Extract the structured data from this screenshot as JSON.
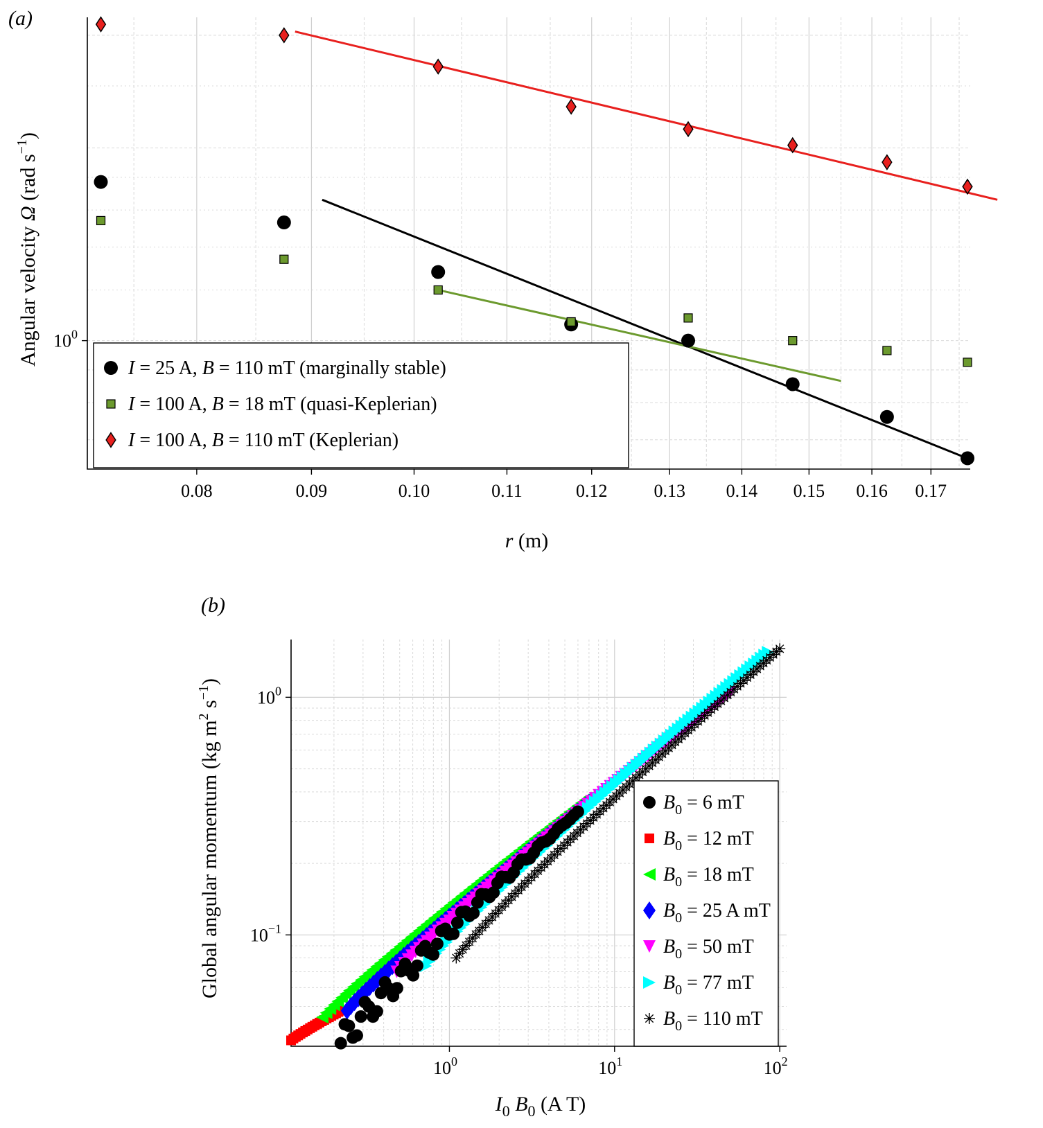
{
  "chart_data": [
    {
      "panel_label": "(a)",
      "type": "scatter",
      "xlabel_var": "r",
      "xlabel_unit": " (m)",
      "ylabel_pre": "Angular velocity ",
      "ylabel_var": "Ω",
      "ylabel_unit": " (rad s",
      "ylabel_sup": "−1",
      "ylabel_post": ")",
      "x_scale": "log",
      "y_scale": "log",
      "xlim": [
        0.0715,
        0.177
      ],
      "ylim": [
        0.63,
        3.2
      ],
      "x_ticks": [
        0.08,
        0.09,
        0.1,
        0.11,
        0.12,
        0.13,
        0.14,
        0.15,
        0.16,
        0.17
      ],
      "x_tick_labels": [
        "0.08",
        "0.09",
        "0.10",
        "0.11",
        "0.12",
        "0.13",
        "0.14",
        "0.15",
        "0.16",
        "0.17"
      ],
      "y_ticks": [
        1.0
      ],
      "y_tick_labels": [
        "10",
        "0"
      ],
      "grid": true,
      "legend_position": "bottom-left",
      "series": [
        {
          "name_parts": [
            "I",
            " = 25 A, ",
            "B",
            " = 110 mT (marginally stable)"
          ],
          "marker": "circle",
          "color": "#000000",
          "x": [
            0.0725,
            0.0875,
            0.1025,
            0.1175,
            0.1325,
            0.1475,
            0.1625,
            0.1775
          ],
          "y": [
            1.77,
            1.53,
            1.28,
            1.06,
            1.0,
            0.855,
            0.76,
            0.655
          ]
        },
        {
          "name_parts": [
            "I",
            " = 100 A, ",
            "B",
            " = 18 mT (quasi-Keplerian)"
          ],
          "marker": "square",
          "color": "#6c9a2e",
          "x": [
            0.0725,
            0.0875,
            0.1025,
            0.1175,
            0.1325,
            0.1475,
            0.1625,
            0.1775
          ],
          "y": [
            1.54,
            1.34,
            1.2,
            1.07,
            1.085,
            1.0,
            0.965,
            0.925
          ]
        },
        {
          "name_parts": [
            "I",
            " = 100 A, ",
            "B",
            " = 110 mT (Keplerian)"
          ],
          "marker": "diamond",
          "color": "#e8201e",
          "x": [
            0.0725,
            0.0875,
            0.1025,
            0.1175,
            0.1325,
            0.1475,
            0.1625,
            0.1775
          ],
          "y": [
            3.12,
            3.0,
            2.68,
            2.32,
            2.14,
            2.02,
            1.9,
            1.74
          ]
        }
      ],
      "fit_lines": [
        {
          "color": "#e8201e",
          "x": [
            0.0885,
            0.182
          ],
          "y": [
            3.04,
            1.66
          ]
        },
        {
          "color": "#000000",
          "x": [
            0.091,
            0.1755
          ],
          "y": [
            1.66,
            0.66
          ]
        },
        {
          "color": "#6c9a2e",
          "x": [
            0.1025,
            0.155
          ],
          "y": [
            1.2,
            0.865
          ]
        }
      ]
    },
    {
      "panel_label": "(b)",
      "type": "scatter",
      "xlabel_parts": [
        "I",
        "0",
        " B",
        "0",
        " (A T)"
      ],
      "ylabel_pre": "Global angular momentum (kg m",
      "ylabel_sup1": "2",
      "ylabel_mid": " s",
      "ylabel_sup2": "−1",
      "ylabel_post": ")",
      "x_scale": "log",
      "y_scale": "log",
      "xlim": [
        0.11,
        110
      ],
      "ylim": [
        0.034,
        1.75
      ],
      "x_ticks": [
        1,
        10,
        100
      ],
      "x_tick_labels": [
        [
          "10",
          "0"
        ],
        [
          "10",
          "1"
        ],
        [
          "10",
          "2"
        ]
      ],
      "y_ticks": [
        0.1,
        1.0
      ],
      "y_tick_labels": [
        [
          "10",
          "−1"
        ],
        [
          "10",
          "0"
        ]
      ],
      "grid": true,
      "legend_position": "bottom-right",
      "series": [
        {
          "name_parts": [
            "B",
            "0",
            " = 6 mT"
          ],
          "marker": "circle",
          "color": "#000000",
          "x_range": [
            0.22,
            6.0
          ],
          "y_start": 0.035,
          "y_end": 0.33,
          "wobble": 0.06,
          "count": 60
        },
        {
          "name_parts": [
            "B",
            "0",
            " = 12 mT"
          ],
          "marker": "square",
          "color": "#ff0000",
          "x_range": [
            0.11,
            0.22
          ],
          "y_start": 0.036,
          "y_end": 0.048,
          "wobble": 0.0,
          "count": 22
        },
        {
          "name_parts": [
            "B",
            "0",
            " = 18 mT"
          ],
          "marker": "triangle-left",
          "color": "#00ff00",
          "x_range": [
            0.17,
            7.0
          ],
          "y_start": 0.045,
          "y_end": 0.38,
          "wobble": 0.0,
          "count": 70
        },
        {
          "name_parts": [
            "B",
            "0",
            " = 25 A mT"
          ],
          "marker": "diamond",
          "color": "#0000ff",
          "x_range": [
            0.24,
            7.0
          ],
          "y_start": 0.048,
          "y_end": 0.36,
          "wobble": 0.0,
          "count": 65
        },
        {
          "name_parts": [
            "B",
            "0",
            " = 50 mT"
          ],
          "marker": "triangle-down",
          "color": "#ff00ff",
          "x_range": [
            0.48,
            50
          ],
          "y_start": 0.07,
          "y_end": 1.05,
          "wobble": 0.0,
          "count": 90
        },
        {
          "name_parts": [
            "B",
            "0",
            " = 77 mT"
          ],
          "marker": "triangle-right",
          "color": "#00ffff",
          "x_range": [
            0.72,
            85
          ],
          "y_start": 0.074,
          "y_end": 1.55,
          "wobble": 0.0,
          "count": 100
        },
        {
          "name_parts": [
            "B",
            "0",
            " = 110 mT"
          ],
          "marker": "asterisk",
          "color": "#000000",
          "x_range": [
            1.1,
            100
          ],
          "y_start": 0.08,
          "y_end": 1.6,
          "wobble": 0.0,
          "count": 100
        }
      ]
    }
  ]
}
